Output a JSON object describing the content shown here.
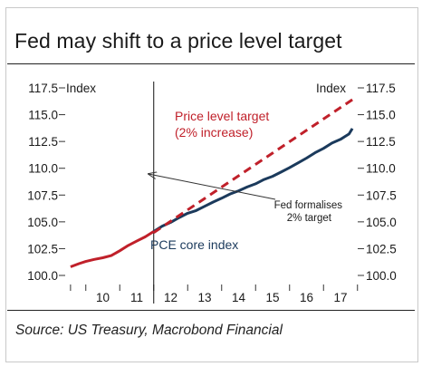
{
  "title": "Fed may shift to a price level target",
  "source": "Source: US Treasury, Macrobond Financial",
  "colors": {
    "pce": "#1b3a5c",
    "target": "#c0202a",
    "text": "#1a1a1a"
  },
  "chart_data": {
    "type": "line",
    "left_axis_label": "Index",
    "right_axis_label": "Index",
    "ylim": [
      100.0,
      117.5
    ],
    "y_ticks": [
      "100.0",
      "102.5",
      "105.0",
      "107.5",
      "110.0",
      "112.5",
      "115.0",
      "117.5"
    ],
    "x_ticks": [
      "10",
      "11",
      "12",
      "13",
      "14",
      "15",
      "16",
      "17"
    ],
    "xlim": [
      2009.5,
      2017.9
    ],
    "grid": false,
    "vline_x": 2012.0,
    "series": [
      {
        "name": "PCE core index",
        "style": "solid",
        "points": [
          [
            2009.55,
            100.8
          ],
          [
            2009.8,
            101.1
          ],
          [
            2010.0,
            101.3
          ],
          [
            2010.25,
            101.5
          ],
          [
            2010.5,
            101.65
          ],
          [
            2010.75,
            101.85
          ],
          [
            2011.0,
            102.3
          ],
          [
            2011.25,
            102.8
          ],
          [
            2011.5,
            103.2
          ],
          [
            2011.75,
            103.6
          ],
          [
            2012.0,
            104.1
          ],
          [
            2012.25,
            104.6
          ],
          [
            2012.5,
            104.95
          ],
          [
            2012.75,
            105.4
          ],
          [
            2013.0,
            105.8
          ],
          [
            2013.25,
            106.05
          ],
          [
            2013.5,
            106.45
          ],
          [
            2013.75,
            106.85
          ],
          [
            2014.0,
            107.2
          ],
          [
            2014.25,
            107.6
          ],
          [
            2014.5,
            107.9
          ],
          [
            2014.75,
            108.25
          ],
          [
            2015.0,
            108.55
          ],
          [
            2015.25,
            108.95
          ],
          [
            2015.5,
            109.25
          ],
          [
            2015.75,
            109.65
          ],
          [
            2016.0,
            110.05
          ],
          [
            2016.25,
            110.5
          ],
          [
            2016.5,
            110.95
          ],
          [
            2016.75,
            111.45
          ],
          [
            2017.0,
            111.85
          ],
          [
            2017.25,
            112.35
          ],
          [
            2017.5,
            112.7
          ],
          [
            2017.75,
            113.2
          ],
          [
            2017.85,
            113.7
          ]
        ]
      },
      {
        "name": "Price level target (2% increase)",
        "style": "dashed",
        "points": [
          [
            2012.0,
            104.0
          ],
          [
            2017.85,
            116.4
          ]
        ]
      }
    ],
    "annotations": [
      {
        "text_lines": [
          "Price level target",
          "(2% increase)"
        ],
        "color": "#c0202a"
      },
      {
        "text_lines": [
          "PCE core index"
        ],
        "color": "#1b3a5c"
      },
      {
        "text_lines": [
          "Fed formalises",
          "2% target"
        ],
        "color": "#1a1a1a"
      }
    ]
  }
}
